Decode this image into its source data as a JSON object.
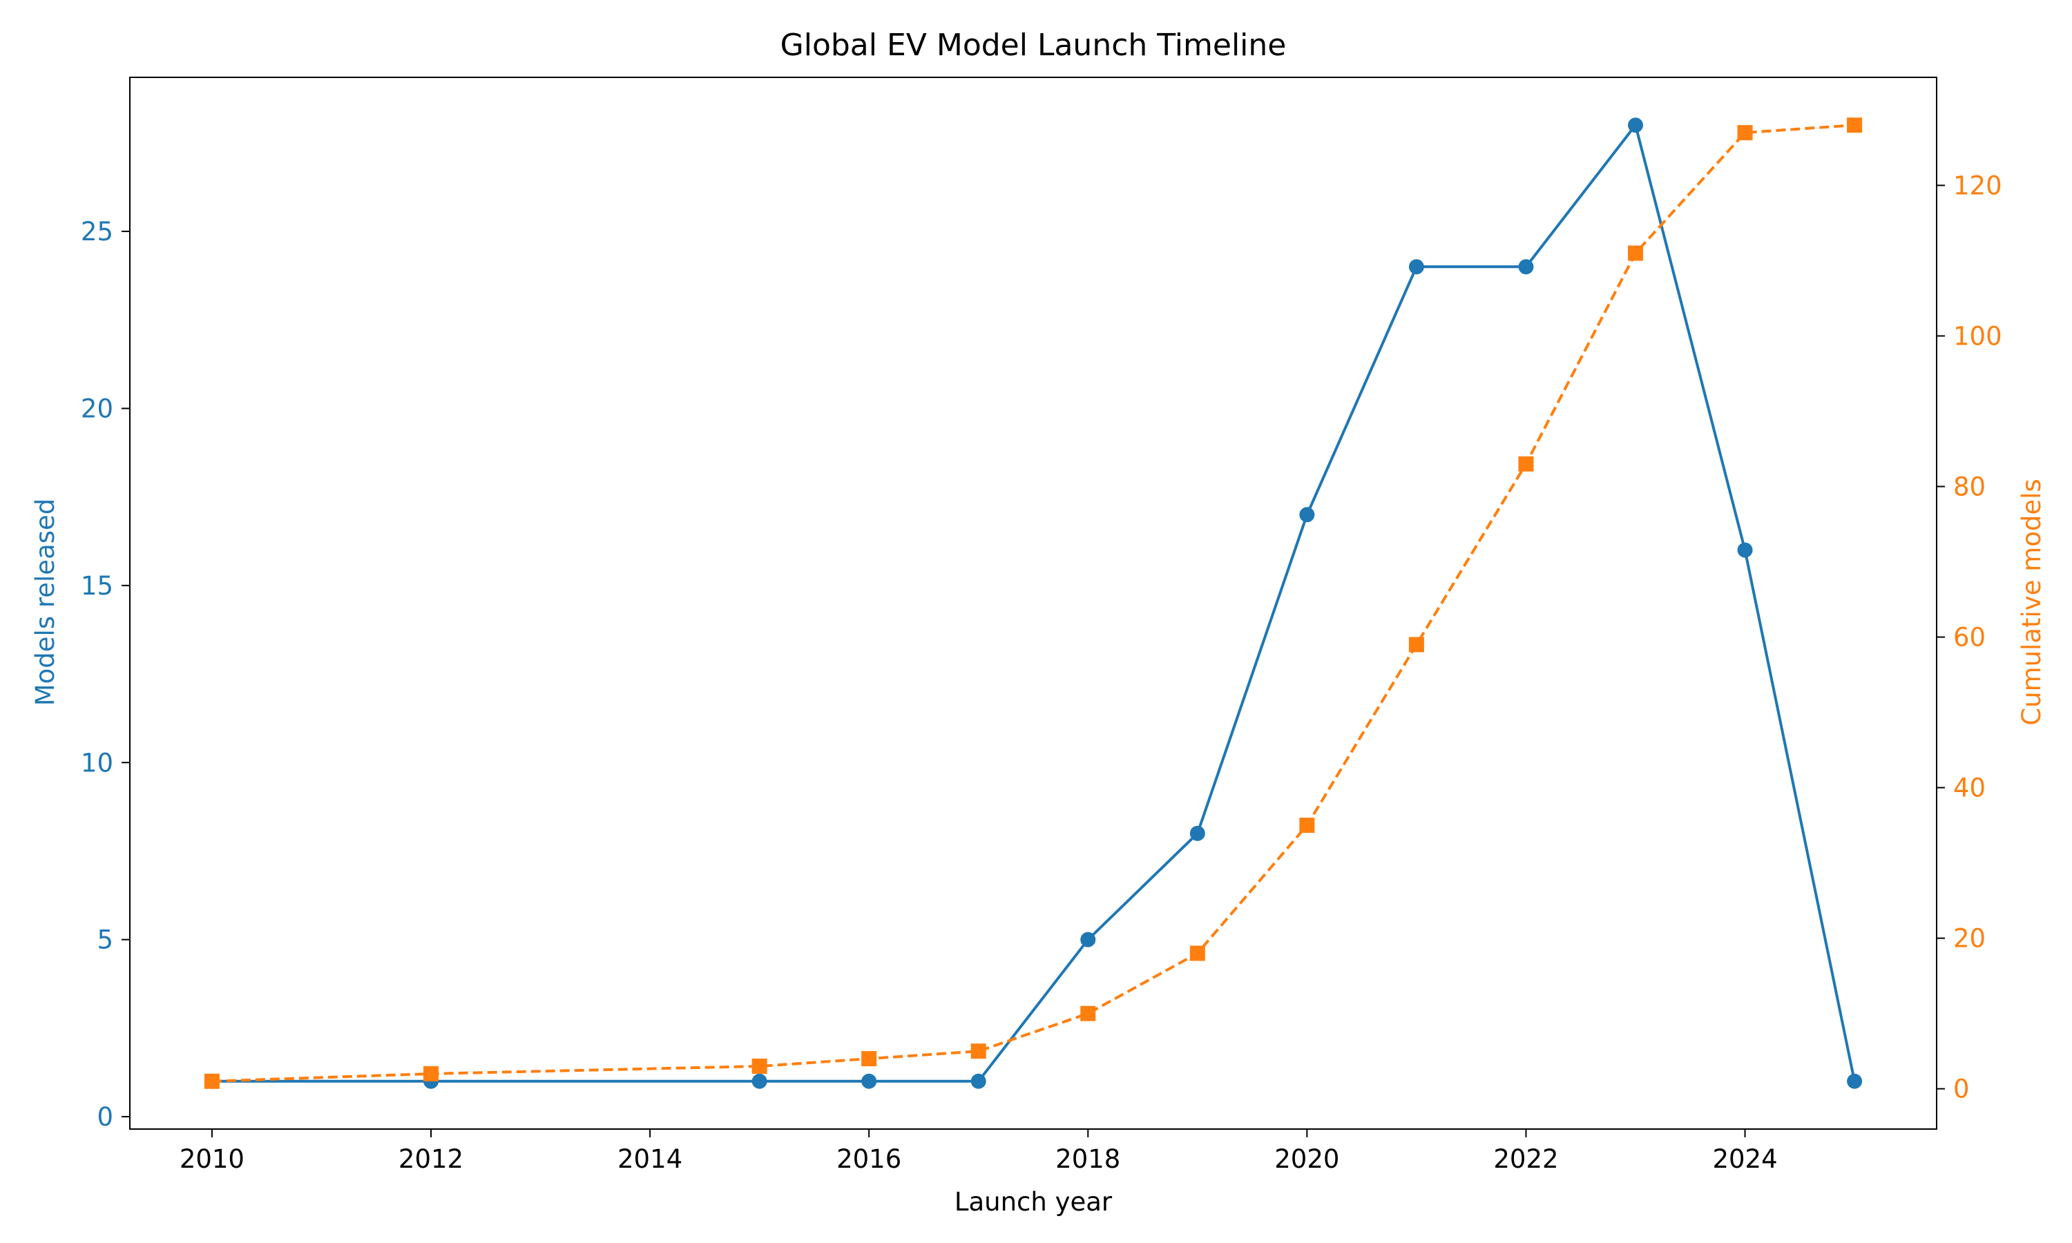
{
  "chart_data": {
    "type": "line",
    "title": "Global EV Model Launch Timeline",
    "xlabel": "Launch year",
    "ylabel_left": "Models released",
    "ylabel_right": "Cumulative models",
    "x": [
      2010,
      2012,
      2015,
      2016,
      2017,
      2018,
      2019,
      2020,
      2021,
      2022,
      2023,
      2024,
      2025
    ],
    "xlim": [
      2009.25,
      2025.75
    ],
    "xticks": [
      2010,
      2012,
      2014,
      2016,
      2018,
      2020,
      2022,
      2024
    ],
    "ylim_left": [
      -0.35,
      29.35
    ],
    "yticks_left": [
      0,
      5,
      10,
      15,
      20,
      25
    ],
    "ylim_right": [
      -5.35,
      134.35
    ],
    "yticks_right": [
      0,
      20,
      40,
      60,
      80,
      100,
      120
    ],
    "grid": false,
    "legend": "none",
    "series": [
      {
        "axis": "left",
        "values": [
          1,
          1,
          1,
          1,
          1,
          5,
          8,
          17,
          24,
          24,
          28,
          16,
          1
        ],
        "color": "#1f77b4",
        "line_style": "solid",
        "marker": "circle"
      },
      {
        "axis": "right",
        "values": [
          1,
          2,
          3,
          4,
          5,
          10,
          18,
          35,
          59,
          83,
          111,
          127,
          128
        ],
        "color": "#ff7f0e",
        "line_style": "dashed",
        "marker": "square"
      }
    ]
  }
}
